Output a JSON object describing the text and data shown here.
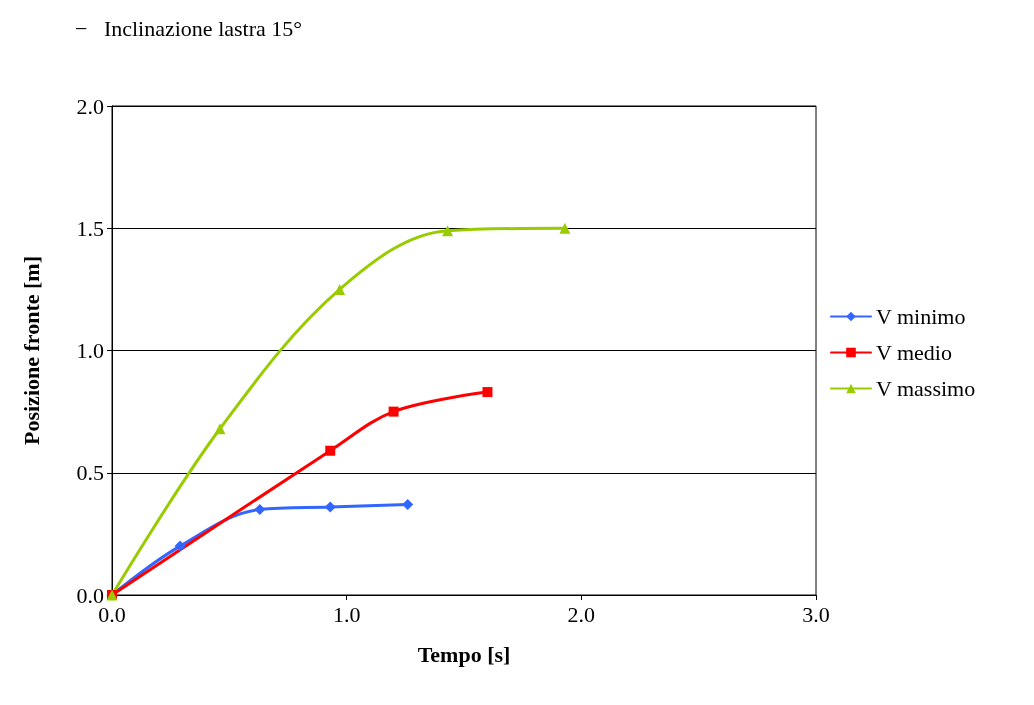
{
  "chart_data": {
    "type": "line",
    "title": "−   Inclinazione lastra 15°",
    "xlabel": "Tempo [s]",
    "ylabel": "Posizione fronte [m]",
    "series": [
      {
        "name": "V minimo",
        "color": "#3366ff",
        "marker": "diamond",
        "x": [
          0,
          0.29,
          0.63,
          0.93,
          1.26
        ],
        "values": [
          0,
          0.2,
          0.35,
          0.36,
          0.37
        ]
      },
      {
        "name": "V medio",
        "color": "#ff0000",
        "marker": "square",
        "x": [
          0,
          0.93,
          1.2,
          1.6
        ],
        "values": [
          0,
          0.59,
          0.75,
          0.83
        ]
      },
      {
        "name": "V massimo",
        "color": "#99cc00",
        "marker": "triangle",
        "x": [
          0,
          0.46,
          0.97,
          1.43,
          1.93
        ],
        "values": [
          0,
          0.68,
          1.25,
          1.49,
          1.5
        ]
      }
    ],
    "xlim": [
      0,
      3
    ],
    "xticks": [
      {
        "value": 0,
        "label": "0.0"
      },
      {
        "value": 1,
        "label": "1.0"
      },
      {
        "value": 2,
        "label": "2.0"
      },
      {
        "value": 3,
        "label": "3.0"
      }
    ],
    "ylim": [
      0,
      2
    ],
    "yticks": [
      {
        "value": 0,
        "label": "0.0"
      },
      0.5,
      {
        "value": 1,
        "label": "1.0"
      },
      1.5,
      {
        "value": 2,
        "label": "2.0"
      }
    ],
    "grid": "y",
    "legend": "right",
    "line_style": "solid"
  }
}
